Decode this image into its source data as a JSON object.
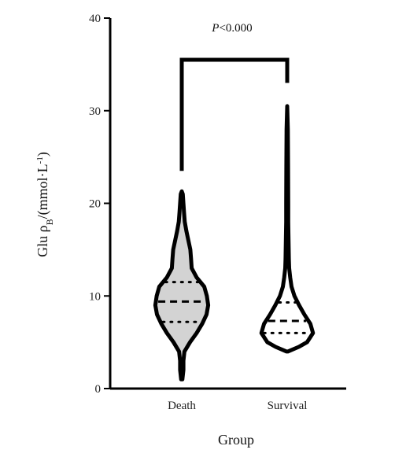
{
  "chart_data": {
    "type": "violin",
    "xlabel": "Group",
    "ylabel_main": "Glu ρ",
    "ylabel_sub": "B",
    "ylabel_unit": "/(mmol·L",
    "ylabel_sup": "-1",
    "ylabel_close": ")",
    "ylim": [
      0,
      40
    ],
    "yticks": [
      "0",
      "10",
      "20",
      "30",
      "40"
    ],
    "categories": [
      "Death",
      "Survival"
    ],
    "annotation": {
      "p_italic": "P",
      "p_rest": "<0.000"
    },
    "groups": [
      {
        "name": "Death",
        "fill": "#d3d3d3",
        "min": 1.0,
        "max": 21.3,
        "median": 9.4,
        "q1": 7.2,
        "q3": 11.5,
        "profile": [
          [
            1.0,
            0.02
          ],
          [
            2.0,
            0.05
          ],
          [
            3.0,
            0.05
          ],
          [
            4.0,
            0.08
          ],
          [
            5.0,
            0.25
          ],
          [
            6.0,
            0.45
          ],
          [
            7.0,
            0.62
          ],
          [
            8.0,
            0.75
          ],
          [
            9.0,
            0.8
          ],
          [
            10.0,
            0.76
          ],
          [
            11.0,
            0.68
          ],
          [
            12.0,
            0.45
          ],
          [
            13.0,
            0.3
          ],
          [
            14.0,
            0.28
          ],
          [
            15.0,
            0.26
          ],
          [
            16.0,
            0.2
          ],
          [
            17.0,
            0.14
          ],
          [
            18.0,
            0.09
          ],
          [
            19.0,
            0.07
          ],
          [
            20.0,
            0.05
          ],
          [
            21.0,
            0.03
          ],
          [
            21.3,
            0.0
          ]
        ]
      },
      {
        "name": "Survival",
        "fill": "#ffffff",
        "min": 4.0,
        "max": 30.5,
        "median": 7.3,
        "q1": 6.0,
        "q3": 9.3,
        "profile": [
          [
            4.0,
            0.02
          ],
          [
            4.5,
            0.35
          ],
          [
            5.0,
            0.6
          ],
          [
            6.0,
            0.78
          ],
          [
            7.0,
            0.7
          ],
          [
            8.0,
            0.52
          ],
          [
            9.0,
            0.36
          ],
          [
            10.0,
            0.22
          ],
          [
            11.0,
            0.13
          ],
          [
            12.0,
            0.09
          ],
          [
            13.0,
            0.06
          ],
          [
            14.0,
            0.05
          ],
          [
            16.0,
            0.04
          ],
          [
            18.0,
            0.03
          ],
          [
            20.0,
            0.03
          ],
          [
            24.0,
            0.025
          ],
          [
            28.0,
            0.02
          ],
          [
            30.5,
            0.0
          ]
        ]
      }
    ],
    "bracket_top": 35.5,
    "bracket_left_bottom": 23.5,
    "bracket_right_bottom": 33.0
  }
}
